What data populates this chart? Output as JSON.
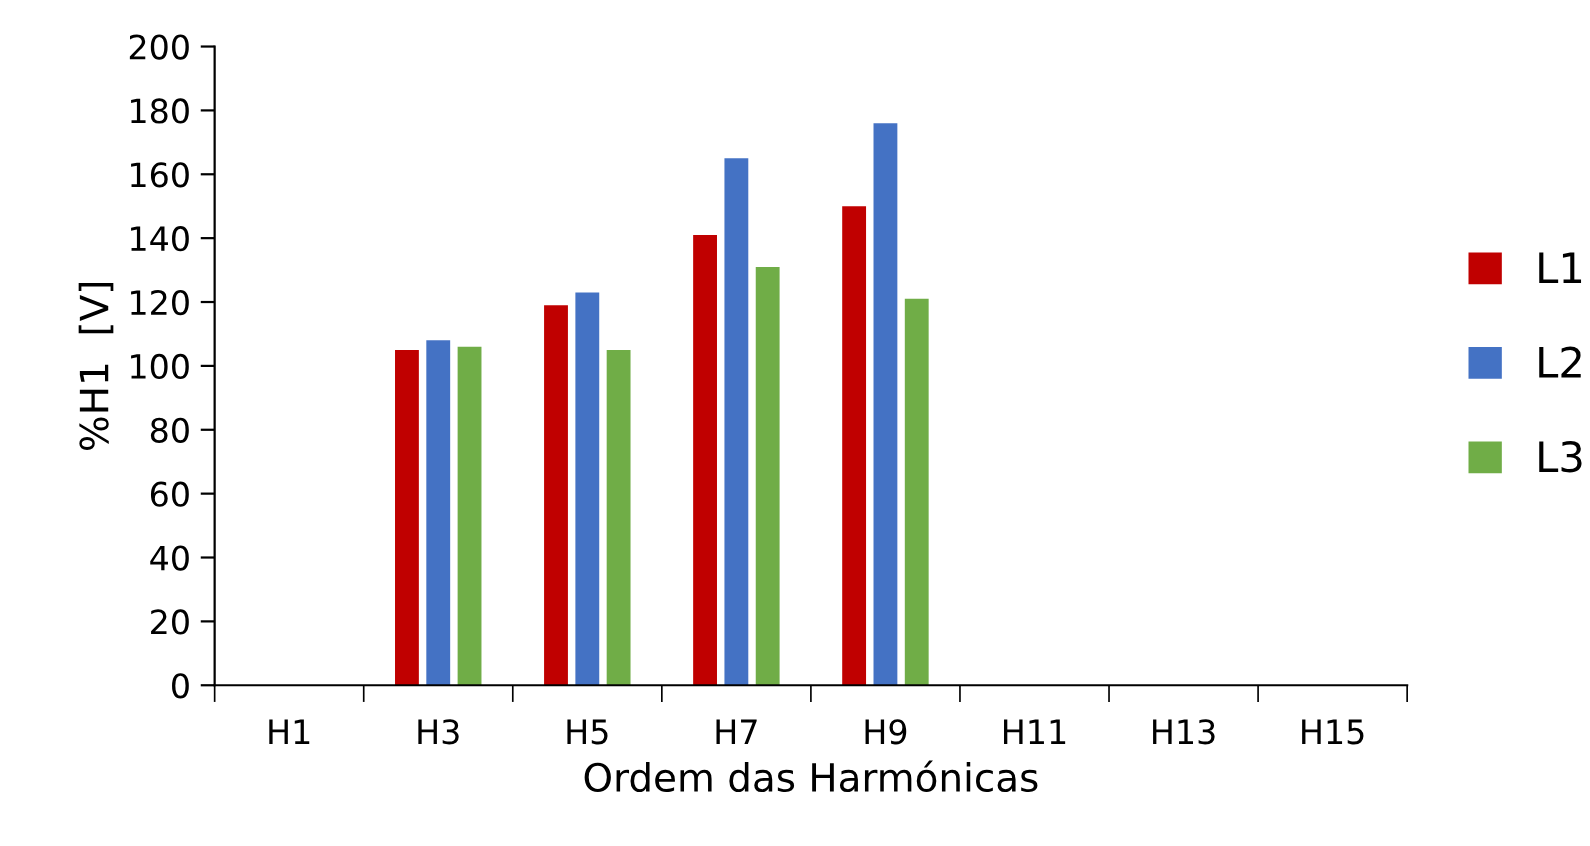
{
  "chart_data": {
    "type": "bar",
    "xlabel": "Ordem das Harmónicas",
    "ylabel": "%H1  [V]",
    "categories": [
      "H1",
      "H3",
      "H5",
      "H7",
      "H9",
      "H11",
      "H13",
      "H15"
    ],
    "series": [
      {
        "name": "L1",
        "color": "#c00000",
        "values": [
          0,
          105,
          119,
          141,
          150,
          0,
          0,
          0
        ]
      },
      {
        "name": "L2",
        "color": "#4472c4",
        "values": [
          0,
          108,
          123,
          165,
          176,
          0,
          0,
          0
        ]
      },
      {
        "name": "L3",
        "color": "#70ad47",
        "values": [
          0,
          106,
          105,
          131,
          121,
          0,
          0,
          0
        ]
      }
    ],
    "ylim": [
      0,
      200
    ],
    "yticks": [
      0,
      20,
      40,
      60,
      80,
      100,
      120,
      140,
      160,
      180,
      200
    ],
    "grid": false,
    "legend": "right"
  }
}
